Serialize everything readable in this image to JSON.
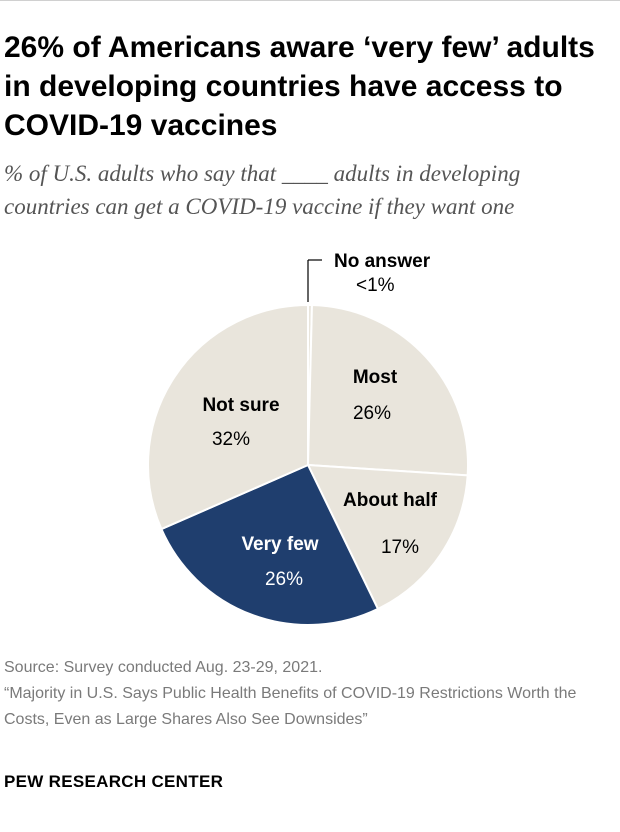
{
  "title": "26% of Americans aware ‘very few’ adults in developing countries have access to COVID-19 vaccines",
  "subtitle": "% of U.S. adults who say that ____ adults in developing countries can get a COVID-19 vaccine if they want one",
  "chart_data": {
    "type": "pie",
    "title": "26% of Americans aware ‘very few’ adults in developing countries have access to COVID-19 vaccines",
    "categories": [
      "No answer",
      "Most",
      "About half",
      "Very few",
      "Not sure"
    ],
    "values": [
      0.4,
      26,
      17,
      26,
      32
    ],
    "display_values": [
      "<1%",
      "26%",
      "17%",
      "26%",
      "32%"
    ],
    "colors": [
      "#e9e5dc",
      "#e9e5dc",
      "#e9e5dc",
      "#1f3e6e",
      "#e9e5dc"
    ],
    "label_colors": [
      "#000000",
      "#000000",
      "#000000",
      "#ffffff",
      "#000000"
    ]
  },
  "source": {
    "line1": "Source: Survey conducted Aug. 23-29, 2021.",
    "line2": "“Majority in U.S. Says Public Health Benefits of COVID-19 Restrictions Worth the Costs, Even as Large Shares Also See Downsides”"
  },
  "org": "PEW RESEARCH CENTER"
}
